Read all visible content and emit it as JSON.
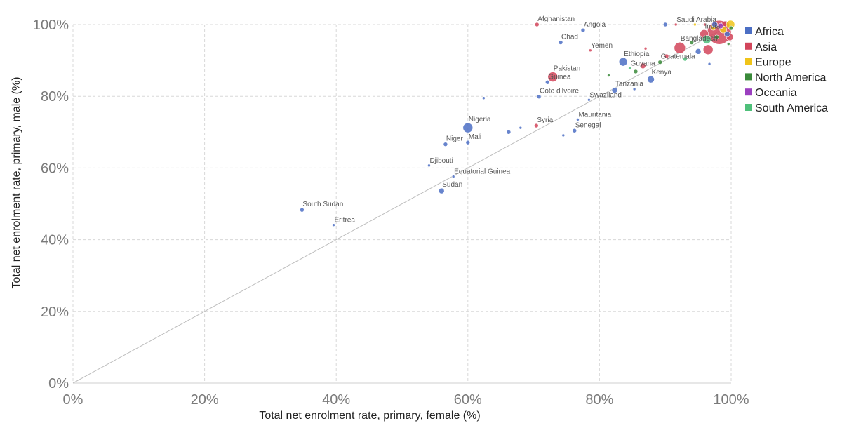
{
  "chart_data": {
    "type": "scatter",
    "xlabel": "Total net enrolment rate, primary, female (%)",
    "ylabel": "Total net enrolment rate, primary, male (%)",
    "xlim": [
      0,
      100
    ],
    "ylim": [
      0,
      100
    ],
    "x_ticks": [
      0,
      20,
      40,
      60,
      80,
      100
    ],
    "y_ticks": [
      0,
      20,
      40,
      60,
      80,
      100
    ],
    "tick_suffix": "%",
    "grid": true,
    "reference_line": "y = x",
    "legend_position": "right",
    "series": [
      {
        "name": "Africa",
        "color": "#4c6fc4"
      },
      {
        "name": "Asia",
        "color": "#d2455b"
      },
      {
        "name": "Europe",
        "color": "#f0c419"
      },
      {
        "name": "North America",
        "color": "#3a8a3a"
      },
      {
        "name": "Oceania",
        "color": "#9b3fbf"
      },
      {
        "name": "South America",
        "color": "#4fc07a"
      }
    ],
    "points": [
      {
        "label": "South Sudan",
        "x": 34.8,
        "y": 48.3,
        "region": "Africa",
        "size": 3
      },
      {
        "label": "Eritrea",
        "x": 39.6,
        "y": 44.1,
        "region": "Africa",
        "size": 2
      },
      {
        "label": "Sudan",
        "x": 56.0,
        "y": 53.6,
        "region": "Africa",
        "size": 4
      },
      {
        "label": "Equatorial Guinea",
        "x": 57.8,
        "y": 57.6,
        "region": "Africa",
        "size": 2
      },
      {
        "label": "Djibouti",
        "x": 54.1,
        "y": 60.7,
        "region": "Africa",
        "size": 2
      },
      {
        "label": "Niger",
        "x": 56.6,
        "y": 66.6,
        "region": "Africa",
        "size": 3
      },
      {
        "label": "Mali",
        "x": 60.0,
        "y": 67.1,
        "region": "Africa",
        "size": 3
      },
      {
        "label": "Nigeria",
        "x": 60.0,
        "y": 71.2,
        "region": "Africa",
        "size": 7
      },
      {
        "label": "",
        "x": 62.4,
        "y": 79.5,
        "region": "Africa",
        "size": 2
      },
      {
        "label": "",
        "x": 66.2,
        "y": 70.0,
        "region": "Africa",
        "size": 3
      },
      {
        "label": "",
        "x": 68.0,
        "y": 71.2,
        "region": "Africa",
        "size": 2
      },
      {
        "label": "Syria",
        "x": 70.4,
        "y": 71.8,
        "region": "Asia",
        "size": 3
      },
      {
        "label": "Cote d'Ivoire",
        "x": 70.8,
        "y": 79.9,
        "region": "Africa",
        "size": 3
      },
      {
        "label": "Guinea",
        "x": 72.1,
        "y": 83.9,
        "region": "Africa",
        "size": 3
      },
      {
        "label": "Pakistan",
        "x": 72.9,
        "y": 85.4,
        "region": "Asia",
        "size": 7
      },
      {
        "label": "Chad",
        "x": 74.1,
        "y": 95.0,
        "region": "Africa",
        "size": 3
      },
      {
        "label": "Afghanistan",
        "x": 70.5,
        "y": 100.0,
        "region": "Asia",
        "size": 3
      },
      {
        "label": "Angola",
        "x": 77.5,
        "y": 98.4,
        "region": "Africa",
        "size": 3
      },
      {
        "label": "Yemen",
        "x": 78.6,
        "y": 92.8,
        "region": "Asia",
        "size": 2
      },
      {
        "label": "",
        "x": 74.5,
        "y": 69.1,
        "region": "Africa",
        "size": 2
      },
      {
        "label": "Senegal",
        "x": 76.2,
        "y": 70.4,
        "region": "Africa",
        "size": 3
      },
      {
        "label": "Mauritania",
        "x": 76.7,
        "y": 73.5,
        "region": "Africa",
        "size": 2
      },
      {
        "label": "Swaziland",
        "x": 78.4,
        "y": 79.0,
        "region": "Africa",
        "size": 2
      },
      {
        "label": "Tanzania",
        "x": 82.3,
        "y": 81.7,
        "region": "Africa",
        "size": 4
      },
      {
        "label": "",
        "x": 81.4,
        "y": 85.8,
        "region": "North America",
        "size": 2
      },
      {
        "label": "Ethiopia",
        "x": 83.6,
        "y": 89.6,
        "region": "Africa",
        "size": 6
      },
      {
        "label": "Guyana",
        "x": 84.6,
        "y": 87.8,
        "region": "South America",
        "size": 2
      },
      {
        "label": "",
        "x": 85.3,
        "y": 82.0,
        "region": "Africa",
        "size": 2
      },
      {
        "label": "",
        "x": 85.5,
        "y": 86.9,
        "region": "North America",
        "size": 3
      },
      {
        "label": "",
        "x": 86.6,
        "y": 88.5,
        "region": "Asia",
        "size": 4
      },
      {
        "label": "",
        "x": 87.0,
        "y": 93.3,
        "region": "Asia",
        "size": 2
      },
      {
        "label": "Kenya",
        "x": 87.8,
        "y": 84.7,
        "region": "Africa",
        "size": 5
      },
      {
        "label": "Guatemala",
        "x": 89.2,
        "y": 89.5,
        "region": "North America",
        "size": 3
      },
      {
        "label": "",
        "x": 90.2,
        "y": 91.2,
        "region": "Asia",
        "size": 3
      },
      {
        "label": "",
        "x": 90.0,
        "y": 100.0,
        "region": "Africa",
        "size": 3
      },
      {
        "label": "Saudi Arabia",
        "x": 91.6,
        "y": 100.0,
        "region": "Asia",
        "size": 2
      },
      {
        "label": "Bangladesh",
        "x": 92.2,
        "y": 93.5,
        "region": "Asia",
        "size": 8
      },
      {
        "label": "",
        "x": 93.0,
        "y": 90.4,
        "region": "South America",
        "size": 3
      },
      {
        "label": "",
        "x": 94.0,
        "y": 95.0,
        "region": "North America",
        "size": 3
      },
      {
        "label": "",
        "x": 94.5,
        "y": 100.0,
        "region": "Europe",
        "size": 2
      },
      {
        "label": "",
        "x": 95.0,
        "y": 92.5,
        "region": "Africa",
        "size": 4
      },
      {
        "label": "India",
        "x": 95.9,
        "y": 97.4,
        "region": "Asia",
        "size": 6
      },
      {
        "label": "",
        "x": 96.5,
        "y": 93.0,
        "region": "Asia",
        "size": 7
      },
      {
        "label": "",
        "x": 96.7,
        "y": 89.0,
        "region": "Africa",
        "size": 2
      },
      {
        "label": "",
        "x": 96.3,
        "y": 95.8,
        "region": "South America",
        "size": 6
      },
      {
        "label": "",
        "x": 97.3,
        "y": 99.2,
        "region": "Europe",
        "size": 4
      },
      {
        "label": "",
        "x": 97.8,
        "y": 96.5,
        "region": "North America",
        "size": 3
      },
      {
        "label": "",
        "x": 98.2,
        "y": 97.8,
        "region": "Asia",
        "size": 17
      },
      {
        "label": "",
        "x": 98.4,
        "y": 99.6,
        "region": "Oceania",
        "size": 4
      },
      {
        "label": "",
        "x": 98.8,
        "y": 98.6,
        "region": "Europe",
        "size": 5
      },
      {
        "label": "",
        "x": 99.1,
        "y": 99.8,
        "region": "Asia",
        "size": 6
      },
      {
        "label": "",
        "x": 99.4,
        "y": 97.3,
        "region": "Africa",
        "size": 4
      },
      {
        "label": "",
        "x": 99.8,
        "y": 96.5,
        "region": "Asia",
        "size": 5
      },
      {
        "label": "",
        "x": 99.9,
        "y": 100.0,
        "region": "Europe",
        "size": 6
      },
      {
        "label": "",
        "x": 100.0,
        "y": 99.0,
        "region": "North America",
        "size": 3
      },
      {
        "label": "",
        "x": 99.6,
        "y": 94.6,
        "region": "North America",
        "size": 2
      },
      {
        "label": "",
        "x": 97.5,
        "y": 100.0,
        "region": "Africa",
        "size": 4
      },
      {
        "label": "",
        "x": 96.0,
        "y": 100.0,
        "region": "Asia",
        "size": 2
      }
    ]
  }
}
